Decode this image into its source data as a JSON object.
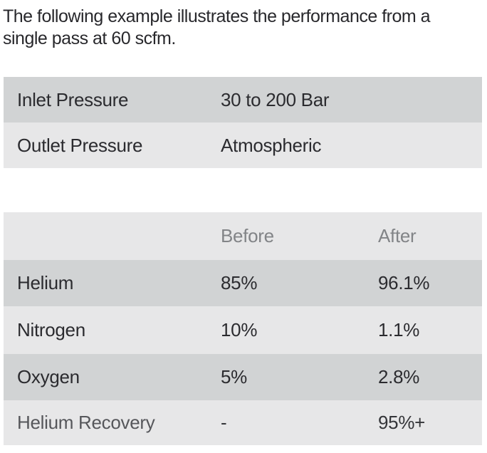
{
  "heading": {
    "line1": "The following example illustrates the performance from a",
    "line2": "single pass at 60 scfm."
  },
  "pressure_table": {
    "rows": [
      {
        "label": "Inlet Pressure",
        "value": "30 to 200 Bar"
      },
      {
        "label": "Outlet Pressure",
        "value": "Atmospheric"
      }
    ]
  },
  "performance_table": {
    "columns": {
      "before": "Before",
      "after": "After"
    },
    "rows": [
      {
        "label": "Helium",
        "before": "85%",
        "after": "96.1%"
      },
      {
        "label": "Nitrogen",
        "before": "10%",
        "after": "1.1%"
      },
      {
        "label": "Oxygen",
        "before": "5%",
        "after": "2.8%"
      },
      {
        "label": "Helium Recovery",
        "before": "-",
        "after": "95%+"
      }
    ]
  },
  "colors": {
    "row_dark": "#d1d3d4",
    "row_light": "#e7e7e8",
    "body_text": "#2b2b2f",
    "header_text": "#828487",
    "muted_label_text": "#56575b",
    "background": "#ffffff"
  }
}
